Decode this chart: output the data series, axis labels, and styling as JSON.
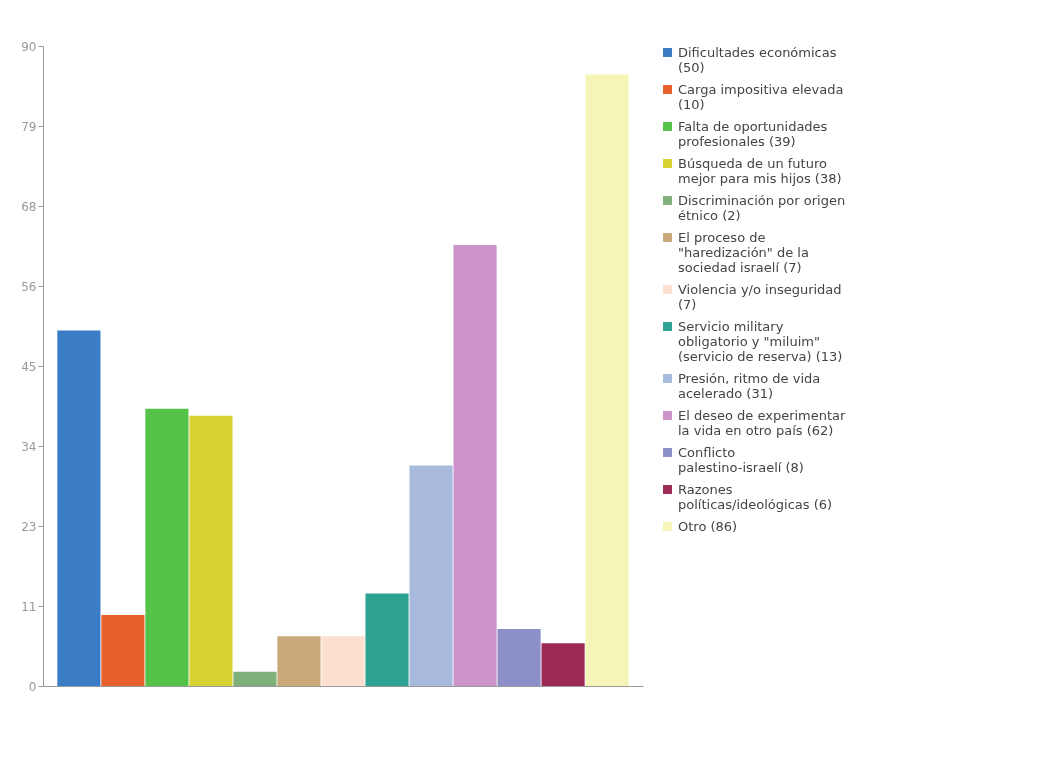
{
  "chart_data": {
    "type": "bar",
    "categories": [
      null
    ],
    "series": [
      {
        "name": "Dificultades económicas (50)",
        "color": "#3a7cc6",
        "values": [
          50
        ]
      },
      {
        "name": "Carga impositiva elevada (10)",
        "color": "#e8602c",
        "values": [
          10
        ]
      },
      {
        "name": "Falta de oportunidades profesionales (39)",
        "color": "#55c24a",
        "values": [
          39
        ]
      },
      {
        "name": "Búsqueda de un futuro mejor para mis hijos (38)",
        "color": "#d6d333",
        "values": [
          38
        ]
      },
      {
        "name": "Discriminación por origen étnico (2)",
        "color": "#7fb07a",
        "values": [
          2
        ]
      },
      {
        "name": "El proceso de \"haredización\" de la sociedad israelí (7)",
        "color": "#c9a97a",
        "values": [
          7
        ]
      },
      {
        "name": "Violencia y/o inseguridad (7)",
        "color": "#fde0d0",
        "values": [
          7
        ]
      },
      {
        "name": "Servicio military obligatorio y \"miluim\" (servicio de reserva) (13)",
        "color": "#2ea394",
        "values": [
          13
        ]
      },
      {
        "name": "Presión, ritmo de vida acelerado (31)",
        "color": "#a9bbdc",
        "values": [
          31
        ]
      },
      {
        "name": "El deseo de experimentar la vida en otro país (62)",
        "color": "#cc94c9",
        "values": [
          62
        ]
      },
      {
        "name": "Conflicto palestino-israelí (8)",
        "color": "#8d8fc8",
        "values": [
          8
        ]
      },
      {
        "name": "Razones políticas/ideológicas (6)",
        "color": "#9b2a55",
        "values": [
          6
        ]
      },
      {
        "name": "Otro (86)",
        "color": "#f5f5b8",
        "values": [
          86
        ]
      }
    ],
    "ylim": [
      0,
      90
    ],
    "yticks": [
      0,
      {
        "value": 11.25,
        "label": "11"
      },
      {
        "value": 22.5,
        "label": "23"
      },
      {
        "value": 33.75,
        "label": "34"
      },
      45,
      {
        "value": 56.25,
        "label": "56"
      },
      {
        "value": 67.5,
        "label": "68"
      },
      {
        "value": 78.75,
        "label": "79"
      },
      90
    ],
    "tick_labels": "y",
    "legend": "right",
    "grid": false
  }
}
